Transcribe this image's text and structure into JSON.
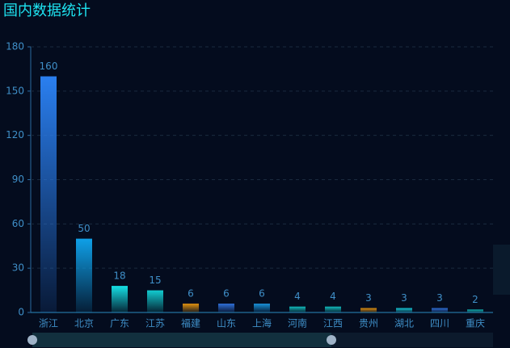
{
  "chart_data": {
    "type": "bar",
    "title": "国内数据统计",
    "categories": [
      "浙江",
      "北京",
      "广东",
      "江苏",
      "福建",
      "山东",
      "上海",
      "河南",
      "江西",
      "贵州",
      "湖北",
      "四川",
      "重庆"
    ],
    "values": [
      160,
      50,
      18,
      15,
      6,
      6,
      6,
      4,
      4,
      3,
      3,
      3,
      2
    ],
    "colors": [
      "#2a7ff0",
      "#0fa0e8",
      "#16e0e6",
      "#12ccd0",
      "#e0900f",
      "#2f6fd8",
      "#1890d8",
      "#12bcbc",
      "#12bcbc",
      "#e0900f",
      "#16c8d8",
      "#2f6fd8",
      "#12bcbc"
    ],
    "ylim": [
      0,
      180
    ],
    "yticks": [
      0,
      30,
      60,
      90,
      120,
      150,
      180
    ],
    "grid": true
  }
}
